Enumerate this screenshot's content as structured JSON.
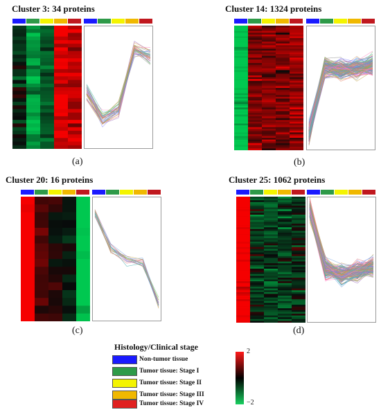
{
  "panels": [
    {
      "id": "a",
      "title": "Cluster 3: 34 proteins",
      "label": "(a)"
    },
    {
      "id": "b",
      "title": "Cluster  14: 1324 proteins",
      "label": "(b)"
    },
    {
      "id": "c",
      "title": "Cluster 20: 16 proteins",
      "label": "(c)"
    },
    {
      "id": "d",
      "title": "Cluster  25: 1062 proteins",
      "label": "(d)"
    }
  ],
  "legend": {
    "title": "Histology/Clinical stage",
    "items": [
      {
        "label": "Non-tumor tissue",
        "color": "#1a1aff"
      },
      {
        "label": "Tumor tissue: Stage I",
        "color": "#2e9a48"
      },
      {
        "label": "Tumor tissue: Stage II",
        "color": "#f4f400"
      },
      {
        "label": "Tumor tissue: Stage III",
        "color": "#f0b800"
      },
      {
        "label": "Tumor tissue: Stage IV",
        "color": "#e02020"
      }
    ]
  },
  "colorbar": {
    "max_label": "2",
    "min_label": "−2"
  },
  "header_colors": [
    "#1a1aff",
    "#2e9a48",
    "#f4f400",
    "#f0b800",
    "#c0181e"
  ],
  "profiles": {
    "a": [
      -0.3,
      -1.5,
      -1.0,
      1.8,
      1.5
    ],
    "b": [
      -2.2,
      1.0,
      0.9,
      0.9,
      1.1
    ],
    "c": [
      2.2,
      0.5,
      0.0,
      -0.2,
      -2.1
    ],
    "d": [
      2.4,
      -0.4,
      -0.7,
      -0.6,
      -0.3
    ]
  }
}
